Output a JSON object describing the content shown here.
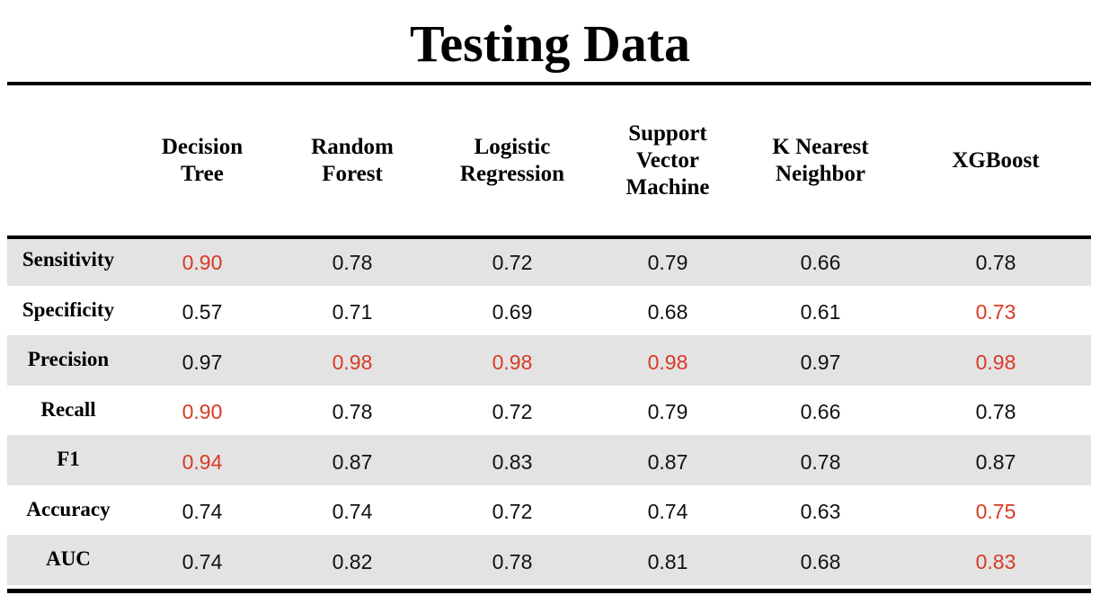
{
  "title": "Testing Data",
  "colors": {
    "best": "#d93a26",
    "shade": "#e3e3e3",
    "text": "#111111"
  },
  "chart_data": {
    "type": "table",
    "title": "Testing Data",
    "columns": [
      "Decision\nTree",
      "Random\nForest",
      "Logistic\nRegression",
      "Support\nVector\nMachine",
      "K  Nearest\nNeighbor",
      "XGBoost"
    ],
    "rows": [
      {
        "label": "Sensitivity",
        "values": [
          "0.90",
          "0.78",
          "0.72",
          "0.79",
          "0.66",
          "0.78"
        ],
        "best": [
          0
        ]
      },
      {
        "label": "Specificity",
        "values": [
          "0.57",
          "0.71",
          "0.69",
          "0.68",
          "0.61",
          "0.73"
        ],
        "best": [
          5
        ]
      },
      {
        "label": "Precision",
        "values": [
          "0.97",
          "0.98",
          "0.98",
          "0.98",
          "0.97",
          "0.98"
        ],
        "best": [
          1,
          2,
          3,
          5
        ]
      },
      {
        "label": "Recall",
        "values": [
          "0.90",
          "0.78",
          "0.72",
          "0.79",
          "0.66",
          "0.78"
        ],
        "best": [
          0
        ]
      },
      {
        "label": "F1",
        "values": [
          "0.94",
          "0.87",
          "0.83",
          "0.87",
          "0.78",
          "0.87"
        ],
        "best": [
          0
        ]
      },
      {
        "label": "Accuracy",
        "values": [
          "0.74",
          "0.74",
          "0.72",
          "0.74",
          "0.63",
          "0.75"
        ],
        "best": [
          5
        ]
      },
      {
        "label": "AUC",
        "values": [
          "0.74",
          "0.82",
          "0.78",
          "0.81",
          "0.68",
          "0.83"
        ],
        "best": [
          5
        ]
      }
    ]
  }
}
